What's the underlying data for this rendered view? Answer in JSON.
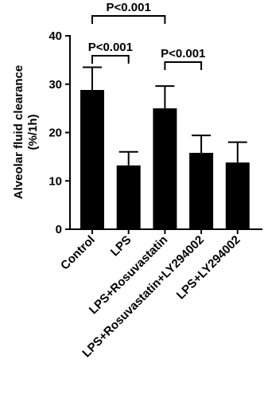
{
  "chart_data": {
    "type": "bar",
    "y_label": [
      "Alveolar fluid clearance",
      "(%/1h)"
    ],
    "categories": [
      "Control",
      "LPS",
      "LPS+Rosuvastatin",
      "LPS+Rosuvastatin+LY294002",
      "LPS+LY294002"
    ],
    "values": [
      28.8,
      13.2,
      25.0,
      15.8,
      13.8
    ],
    "errors": [
      4.7,
      2.8,
      4.6,
      3.6,
      4.2
    ],
    "color": "#000000",
    "ylim": [
      0,
      40
    ],
    "yticks": [
      0,
      10,
      20,
      30,
      40
    ],
    "annotations": [
      {
        "text": "P<0.001",
        "between": [
          0,
          1
        ]
      },
      {
        "text": "P<0.001",
        "between": [
          0,
          2
        ]
      },
      {
        "text": "P<0.001",
        "between": [
          2,
          3
        ]
      }
    ]
  }
}
